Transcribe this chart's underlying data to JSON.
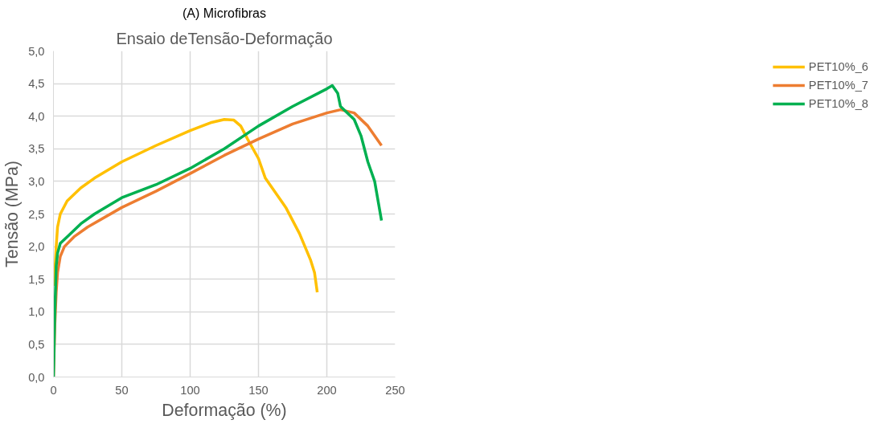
{
  "chart_data": {
    "type": "line",
    "title": "(A) Microfibras",
    "subtitle": "Ensaio deTensão-Deformação",
    "xlabel": "Deformação (%)",
    "ylabel": "Tensão (MPa)",
    "xlim": [
      0,
      250
    ],
    "xticks": [
      0,
      50,
      100,
      150,
      200,
      250
    ],
    "ylim": [
      0,
      5
    ],
    "yticks": [
      {
        "value": 0,
        "label": "0,0"
      },
      {
        "value": 0.5,
        "label": "0,5"
      },
      {
        "value": 1,
        "label": "1,0"
      },
      {
        "value": 1.5,
        "label": "1,5"
      },
      {
        "value": 2,
        "label": "2,0"
      },
      {
        "value": 2.5,
        "label": "2,5"
      },
      {
        "value": 3,
        "label": "3,0"
      },
      {
        "value": 3.5,
        "label": "3,5"
      },
      {
        "value": 4,
        "label": "4,0"
      },
      {
        "value": 4.5,
        "label": "4,5"
      },
      {
        "value": 5,
        "label": "5,0"
      }
    ],
    "grid": true,
    "legend": "right",
    "marker": "none",
    "line_style": "solid",
    "series": [
      {
        "name": "PET10%_6",
        "color": "#ffc000",
        "x": [
          0,
          1,
          2,
          3,
          5,
          10,
          20,
          30,
          50,
          75,
          100,
          115,
          125,
          132,
          137,
          142,
          150,
          155,
          160,
          170,
          180,
          188,
          191,
          193
        ],
        "values": [
          1.4,
          1.6,
          2.0,
          2.3,
          2.5,
          2.7,
          2.9,
          3.05,
          3.3,
          3.55,
          3.78,
          3.9,
          3.95,
          3.94,
          3.85,
          3.65,
          3.35,
          3.05,
          2.9,
          2.6,
          2.2,
          1.8,
          1.6,
          1.3
        ]
      },
      {
        "name": "PET10%_7",
        "color": "#ed7d31",
        "x": [
          0,
          1,
          2,
          3,
          5,
          8,
          15,
          25,
          50,
          75,
          100,
          125,
          150,
          175,
          200,
          210,
          220,
          230,
          240
        ],
        "values": [
          0,
          0.8,
          1.3,
          1.6,
          1.85,
          2.0,
          2.15,
          2.3,
          2.6,
          2.85,
          3.12,
          3.4,
          3.65,
          3.88,
          4.05,
          4.1,
          4.05,
          3.85,
          3.55
        ]
      },
      {
        "name": "PET10%_8",
        "color": "#00b050",
        "x": [
          0,
          1,
          2,
          3,
          5,
          10,
          20,
          30,
          50,
          75,
          100,
          125,
          150,
          175,
          200,
          204,
          208,
          210,
          220,
          225,
          230,
          235,
          240
        ],
        "values": [
          0,
          1.0,
          1.7,
          1.9,
          2.05,
          2.15,
          2.35,
          2.5,
          2.75,
          2.95,
          3.2,
          3.5,
          3.85,
          4.15,
          4.42,
          4.47,
          4.35,
          4.15,
          3.95,
          3.7,
          3.3,
          3.0,
          2.4
        ]
      }
    ]
  }
}
